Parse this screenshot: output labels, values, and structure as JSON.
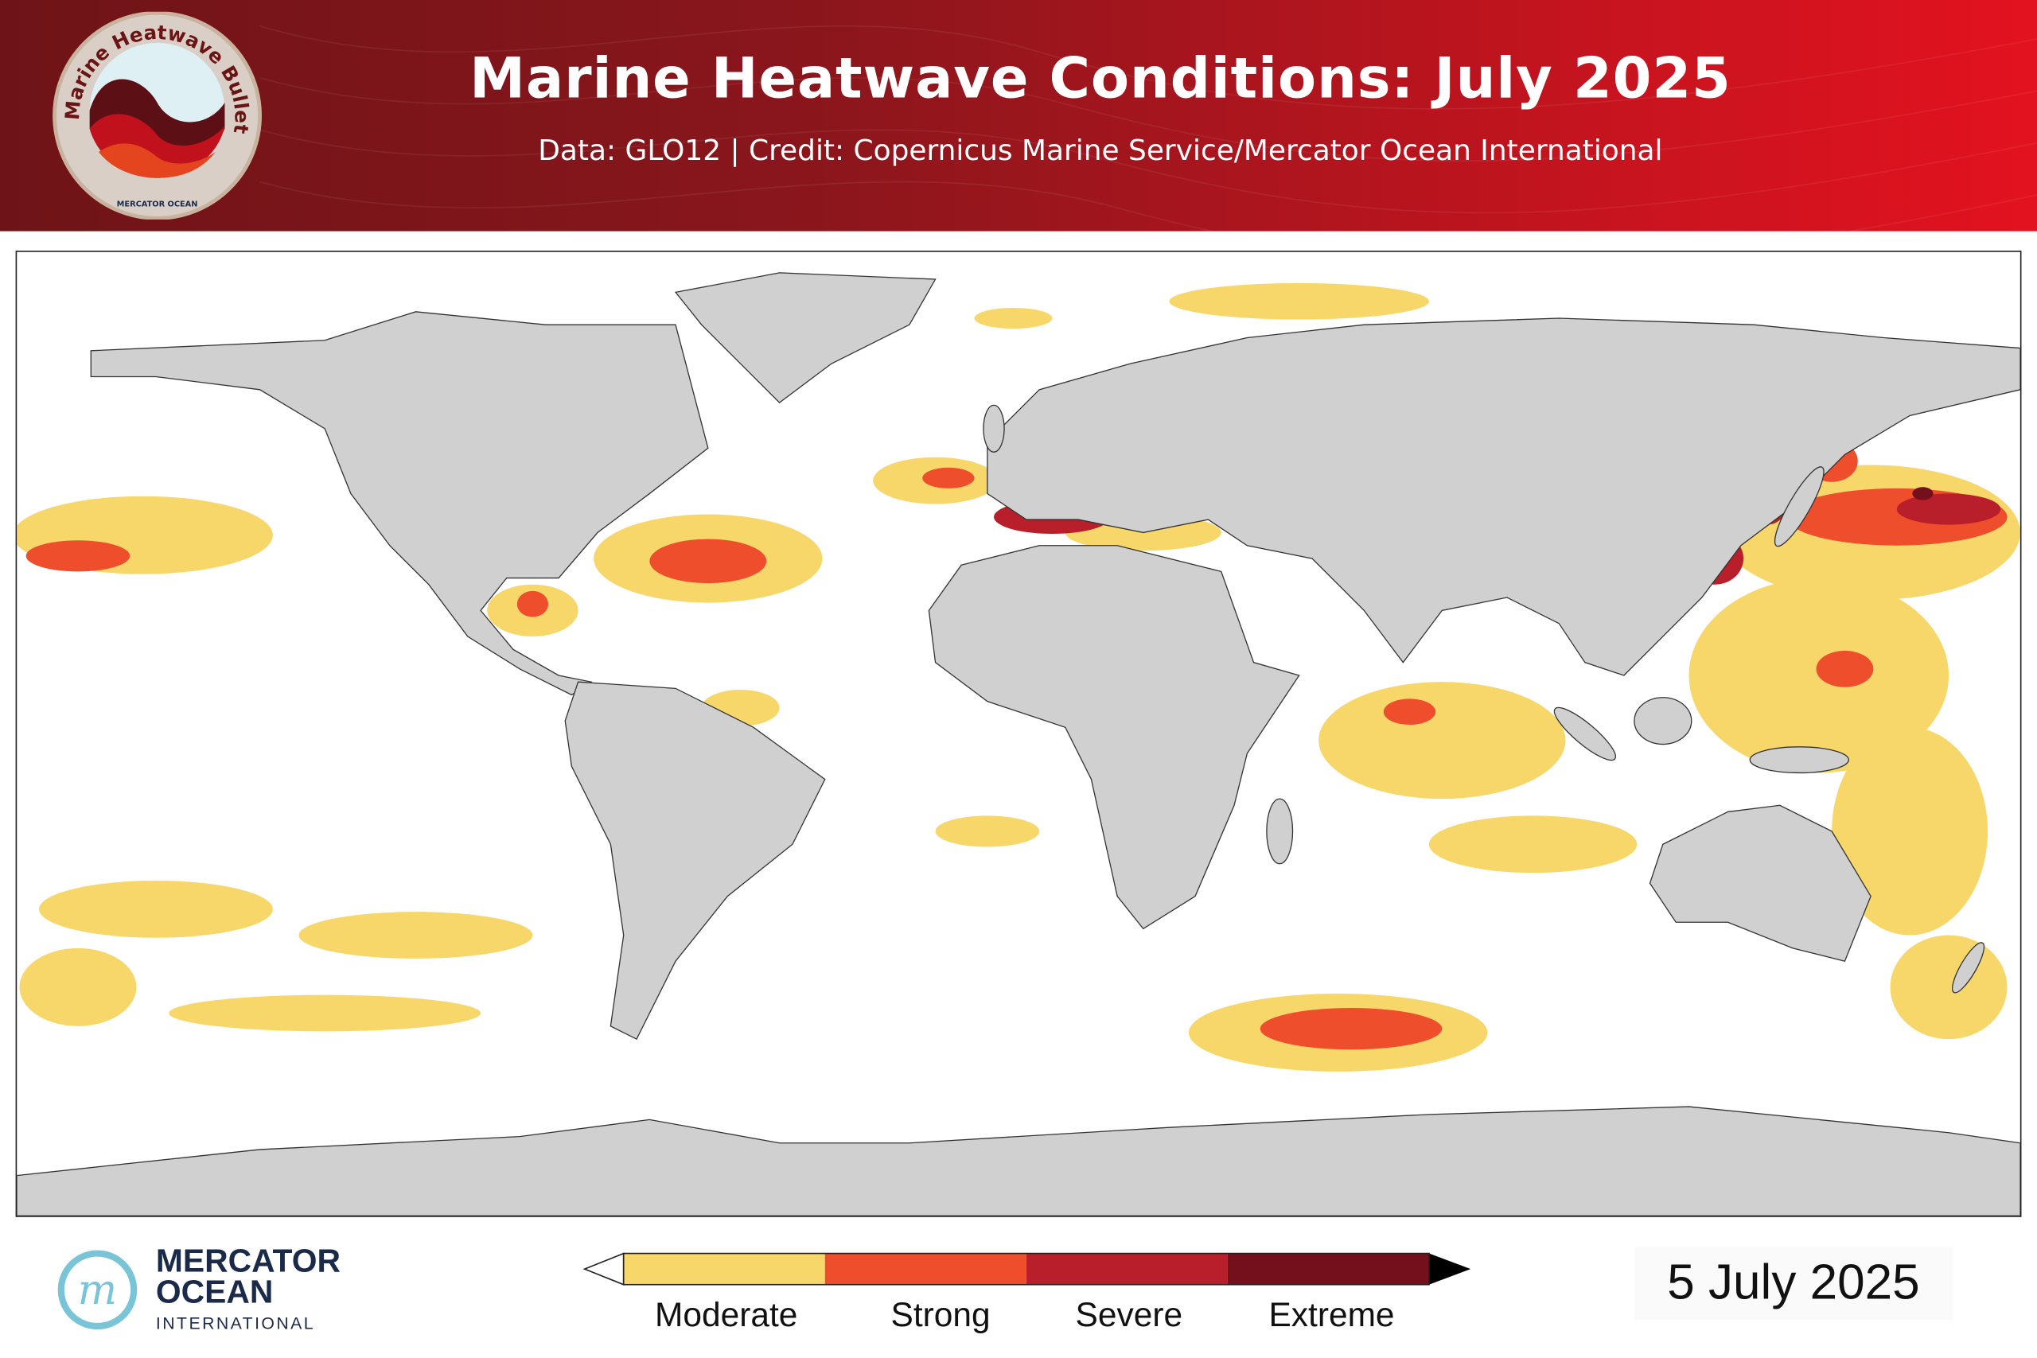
{
  "header": {
    "title": "Marine Heatwave Conditions: July 2025",
    "subtitle": "Data: GLO12 | Credit: Copernicus Marine Service/Mercator Ocean International",
    "badge_text": "Marine Heatwave Bulletin",
    "badge_org": "MERCATOR OCEAN"
  },
  "map": {
    "land_color": "#d0d0d0",
    "ocean_color": "#ffffff"
  },
  "legend": {
    "categories": [
      {
        "label": "Moderate",
        "color": "#f7d66a"
      },
      {
        "label": "Strong",
        "color": "#ef4e2d"
      },
      {
        "label": "Severe",
        "color": "#b91f2a"
      },
      {
        "label": "Extreme",
        "color": "#74101c"
      }
    ]
  },
  "footer": {
    "logo_line1": "MERCATOR",
    "logo_line2": "OCEAN",
    "logo_line3": "INTERNATIONAL",
    "date": "5 July 2025"
  }
}
